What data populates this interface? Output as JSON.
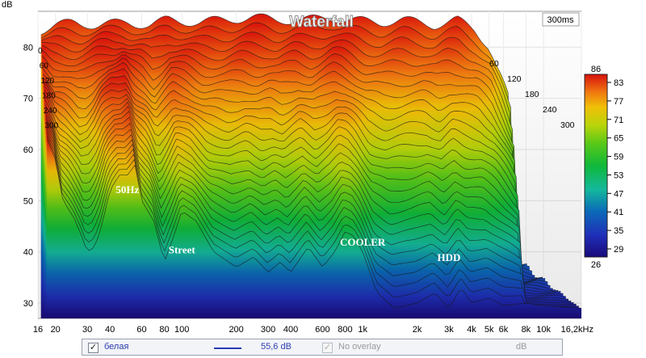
{
  "chart_data": {
    "type": "heatmap",
    "title": "Waterfall",
    "time_label": "300ms",
    "y_unit": "dB",
    "y_ticks": [
      30,
      40,
      50,
      60,
      70,
      80
    ],
    "ylim": [
      27,
      87
    ],
    "xlim": [
      16,
      16200
    ],
    "x_scale": "log",
    "x_ticks": [
      {
        "v": 16,
        "l": "16"
      },
      {
        "v": 20,
        "l": "20"
      },
      {
        "v": 30,
        "l": "30"
      },
      {
        "v": 40,
        "l": "40"
      },
      {
        "v": 60,
        "l": "60"
      },
      {
        "v": 80,
        "l": "80"
      },
      {
        "v": 100,
        "l": "100"
      },
      {
        "v": 200,
        "l": "200"
      },
      {
        "v": 300,
        "l": "300"
      },
      {
        "v": 400,
        "l": "400"
      },
      {
        "v": 600,
        "l": "600"
      },
      {
        "v": 800,
        "l": "800"
      },
      {
        "v": 1000,
        "l": "1k"
      },
      {
        "v": 2000,
        "l": "2k"
      },
      {
        "v": 3000,
        "l": "3k"
      },
      {
        "v": 4000,
        "l": "4k"
      },
      {
        "v": 5000,
        "l": "5k"
      },
      {
        "v": 6000,
        "l": "6k"
      },
      {
        "v": 8000,
        "l": "8k"
      },
      {
        "v": 10000,
        "l": "10k"
      },
      {
        "v": 16200,
        "l": "16,2kHz"
      }
    ],
    "depth_ticks_left": [
      "0",
      "60",
      "120",
      "180",
      "240",
      "300"
    ],
    "depth_ticks_right": [
      "60",
      "120",
      "180",
      "240",
      "300"
    ],
    "colorbar": {
      "max": "86",
      "min": "26",
      "ticks": [
        "83",
        "77",
        "71",
        "65",
        "59",
        "53",
        "47",
        "41",
        "35",
        "29"
      ]
    },
    "annotations": [
      {
        "text": "50Hz",
        "freq": 50,
        "db": 51.5
      },
      {
        "text": "Street",
        "freq": 100,
        "db": 39.7
      },
      {
        "text": "COOLER",
        "freq": 1000,
        "db": 41.2
      },
      {
        "text": "HDD",
        "freq": 3000,
        "db": 38.2
      }
    ],
    "first_slice": [
      [
        16,
        null
      ],
      [
        18,
        62
      ],
      [
        20,
        58
      ],
      [
        22,
        50
      ],
      [
        25,
        47
      ],
      [
        28,
        43
      ],
      [
        30,
        40
      ],
      [
        33,
        41
      ],
      [
        36,
        45
      ],
      [
        40,
        52
      ],
      [
        45,
        55
      ],
      [
        50,
        55
      ],
      [
        55,
        57
      ],
      [
        60,
        50
      ],
      [
        70,
        46
      ],
      [
        80,
        38
      ],
      [
        90,
        43
      ],
      [
        100,
        48
      ],
      [
        120,
        46
      ],
      [
        150,
        40
      ],
      [
        200,
        37
      ],
      [
        250,
        39
      ],
      [
        300,
        36
      ],
      [
        350,
        38
      ],
      [
        400,
        36
      ],
      [
        500,
        41
      ],
      [
        600,
        37
      ],
      [
        700,
        40
      ],
      [
        800,
        44
      ],
      [
        900,
        43
      ],
      [
        1000,
        40
      ],
      [
        1200,
        32
      ],
      [
        1500,
        29
      ],
      [
        2000,
        30
      ],
      [
        2500,
        32
      ],
      [
        3000,
        29
      ],
      [
        3500,
        33
      ],
      [
        4000,
        30
      ],
      [
        5000,
        31
      ],
      [
        6000,
        29.5
      ],
      [
        8000,
        30
      ],
      [
        10000,
        29.5
      ],
      [
        16200,
        29
      ]
    ],
    "last_slice": [
      [
        20,
        83
      ],
      [
        25,
        84
      ],
      [
        30,
        84.5
      ],
      [
        40,
        84
      ],
      [
        60,
        84.5
      ],
      [
        80,
        84
      ],
      [
        100,
        85
      ],
      [
        150,
        84.5
      ],
      [
        200,
        85
      ],
      [
        300,
        85.5
      ],
      [
        400,
        85
      ],
      [
        600,
        85
      ],
      [
        800,
        85.5
      ],
      [
        1000,
        85
      ],
      [
        1500,
        84.5
      ],
      [
        2000,
        85
      ],
      [
        3000,
        84
      ],
      [
        4000,
        85
      ],
      [
        5000,
        83
      ],
      [
        6000,
        80
      ],
      [
        7000,
        74
      ],
      [
        8000,
        68
      ]
    ]
  },
  "legend_bar": {
    "series_name": "белая",
    "value": "55,6 dB",
    "overlay_label": "No overlay",
    "overlay_unit": "dB"
  }
}
